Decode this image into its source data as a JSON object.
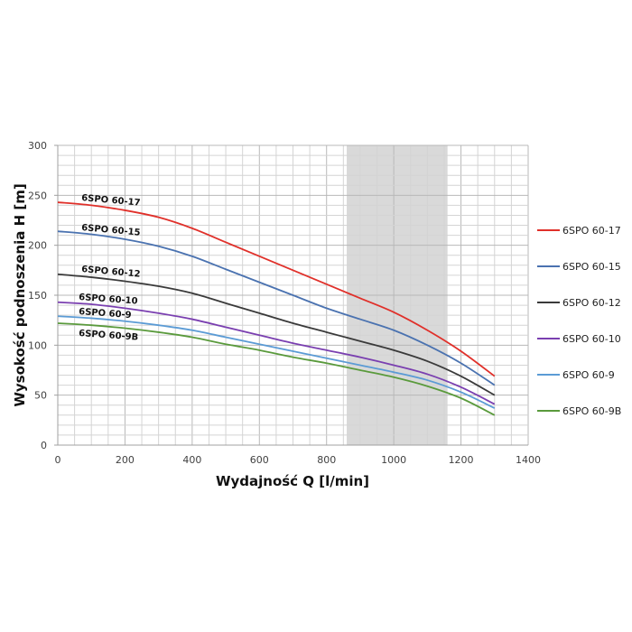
{
  "chart_data": {
    "type": "line",
    "title": "",
    "xlabel": "Wydajność Q [l/min]",
    "ylabel": "Wysokość podnoszenia H [m]",
    "xlim": [
      0,
      1400
    ],
    "ylim": [
      0,
      300
    ],
    "xticks": [
      0,
      200,
      400,
      600,
      800,
      1000,
      1200,
      1400
    ],
    "yticks": [
      0,
      50,
      100,
      150,
      200,
      250,
      300
    ],
    "grid": true,
    "minor_grid": {
      "x_step": 50,
      "y_step": 10
    },
    "legend_position": "right",
    "highlight_band": {
      "x_from": 860,
      "x_to": 1160,
      "color": "#d9d9d9"
    },
    "x": [
      0,
      100,
      200,
      300,
      400,
      500,
      600,
      700,
      800,
      900,
      1000,
      1100,
      1200,
      1300
    ],
    "series": [
      {
        "name": "6SPO 60-17",
        "color": "#e0302a",
        "label": "6SPO 60-17",
        "values": [
          243,
          240,
          235,
          228,
          217,
          203,
          189,
          175,
          161,
          147,
          133,
          115,
          94,
          69
        ]
      },
      {
        "name": "6SPO 60-15",
        "color": "#4a72b0",
        "label": "6SPO 60-15",
        "values": [
          214,
          211,
          206,
          199,
          189,
          176,
          163,
          150,
          137,
          126,
          115,
          100,
          82,
          60
        ]
      },
      {
        "name": "6SPO 60-12",
        "color": "#3a3a3a",
        "label": "6SPO 60-12",
        "values": [
          171,
          168,
          164,
          159,
          152,
          142,
          132,
          122,
          113,
          104,
          95,
          84,
          69,
          50
        ]
      },
      {
        "name": "6SPO 60-10",
        "color": "#7a3fb0",
        "label": "6SPO 60-10",
        "values": [
          143,
          141,
          137,
          132,
          126,
          118,
          110,
          102,
          95,
          88,
          80,
          71,
          58,
          41
        ]
      },
      {
        "name": "6SPO 60-9",
        "color": "#5b9bd5",
        "label": "6SPO 60-9",
        "values": [
          129,
          127,
          124,
          120,
          115,
          108,
          101,
          94,
          87,
          80,
          73,
          65,
          53,
          37
        ]
      },
      {
        "name": "6SPO 60-9B",
        "color": "#5a9a3c",
        "label": "6SPO 60-9B",
        "values": [
          122,
          120,
          117,
          113,
          108,
          101,
          95,
          88,
          82,
          75,
          68,
          59,
          47,
          30
        ]
      }
    ]
  }
}
